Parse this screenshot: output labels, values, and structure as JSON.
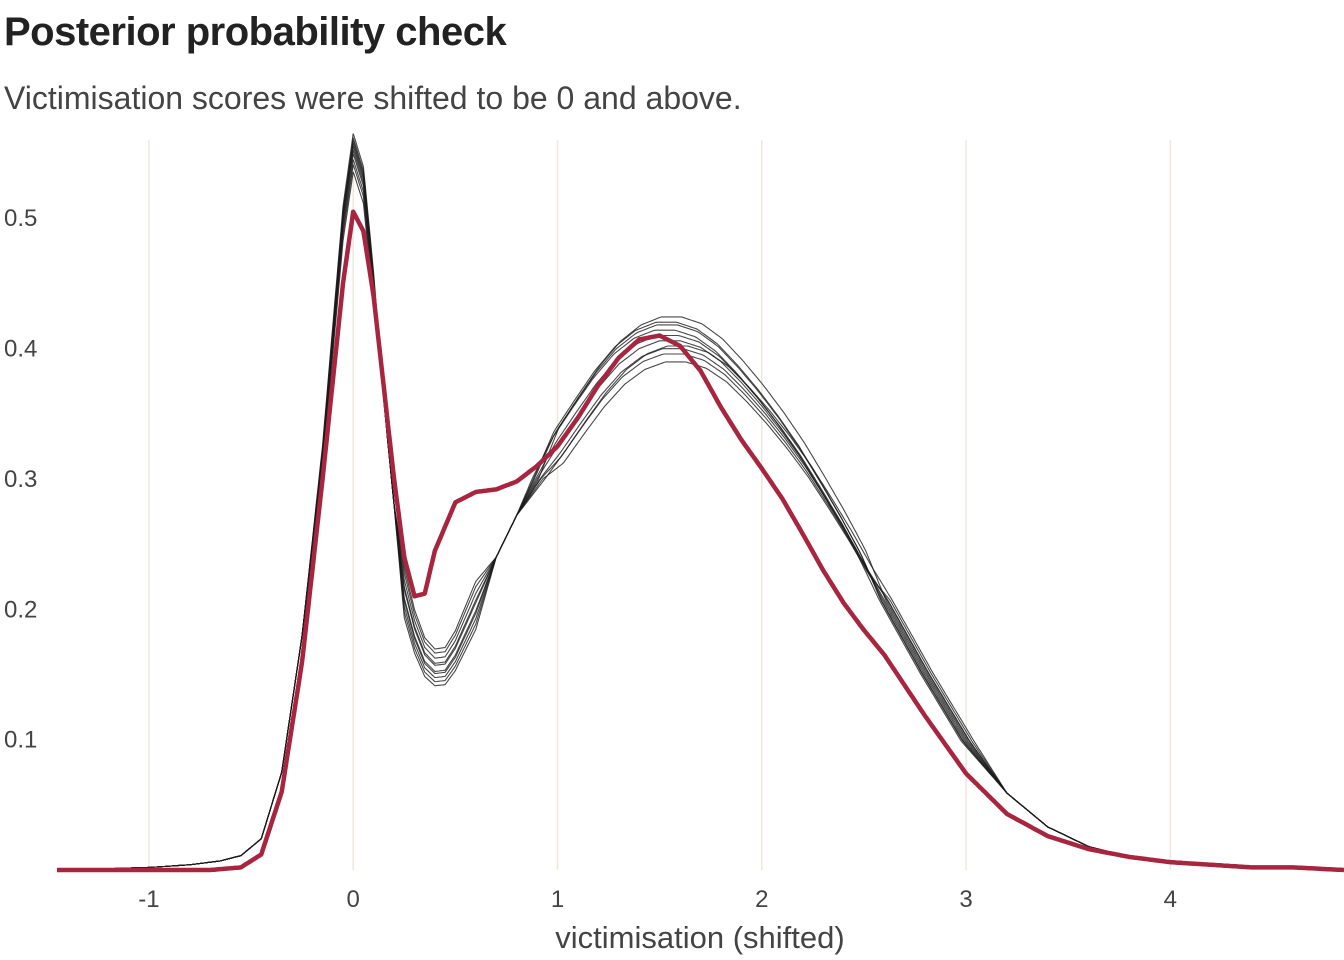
{
  "title": "Posterior probability check",
  "subtitle": "Victimisation scores were shifted to be 0 and above.",
  "chart_data": {
    "type": "line",
    "xlabel": "victimisation (shifted)",
    "ylabel": "",
    "xlim": [
      -1.45,
      4.85
    ],
    "ylim": [
      0,
      0.56
    ],
    "xticks": [
      "-1",
      "0",
      "1",
      "2",
      "3",
      "4"
    ],
    "yticks": [
      "0.1",
      "0.2",
      "0.3",
      "0.4",
      "0.5"
    ],
    "grid": "vertical",
    "colors": {
      "observed": "#A8253F",
      "replicated": "#1a1a1a",
      "grid": "#EFE8DF"
    },
    "observed": {
      "x": [
        -1.45,
        -1.0,
        -0.7,
        -0.55,
        -0.45,
        -0.35,
        -0.25,
        -0.15,
        -0.05,
        0.0,
        0.05,
        0.1,
        0.15,
        0.2,
        0.25,
        0.3,
        0.35,
        0.4,
        0.5,
        0.6,
        0.7,
        0.8,
        0.9,
        1.0,
        1.1,
        1.2,
        1.3,
        1.4,
        1.5,
        1.6,
        1.7,
        1.8,
        1.9,
        2.0,
        2.1,
        2.2,
        2.3,
        2.4,
        2.5,
        2.6,
        2.8,
        3.0,
        3.2,
        3.4,
        3.6,
        3.8,
        4.0,
        4.2,
        4.4,
        4.6,
        4.85
      ],
      "y": [
        0.0,
        0.0,
        0.0,
        0.002,
        0.012,
        0.06,
        0.16,
        0.3,
        0.45,
        0.505,
        0.49,
        0.44,
        0.37,
        0.3,
        0.24,
        0.21,
        0.212,
        0.245,
        0.282,
        0.29,
        0.292,
        0.298,
        0.31,
        0.325,
        0.347,
        0.372,
        0.393,
        0.407,
        0.41,
        0.402,
        0.383,
        0.355,
        0.33,
        0.308,
        0.285,
        0.258,
        0.23,
        0.205,
        0.184,
        0.165,
        0.118,
        0.074,
        0.043,
        0.026,
        0.016,
        0.01,
        0.006,
        0.004,
        0.002,
        0.002,
        0.0
      ]
    },
    "replicated_x": [
      -1.45,
      -1.2,
      -1.0,
      -0.8,
      -0.65,
      -0.55,
      -0.45,
      -0.35,
      -0.25,
      -0.15,
      -0.05,
      0.0,
      0.05,
      0.1,
      0.15,
      0.2,
      0.25,
      0.3,
      0.35,
      0.4,
      0.45,
      0.5,
      0.6,
      0.7,
      0.8,
      0.9,
      1.0,
      1.1,
      1.2,
      1.3,
      1.4,
      1.5,
      1.6,
      1.7,
      1.8,
      1.9,
      2.0,
      2.1,
      2.2,
      2.3,
      2.4,
      2.5,
      2.6,
      2.8,
      3.0,
      3.2,
      3.4,
      3.6,
      3.8,
      4.0,
      4.2,
      4.4,
      4.6,
      4.85
    ],
    "replicated_y": [
      0.0,
      0.001,
      0.002,
      0.004,
      0.007,
      0.011,
      0.024,
      0.075,
      0.18,
      0.32,
      0.5,
      0.555,
      0.53,
      0.45,
      0.36,
      0.28,
      0.215,
      0.185,
      0.165,
      0.157,
      0.158,
      0.17,
      0.205,
      0.24,
      0.272,
      0.3,
      0.325,
      0.348,
      0.37,
      0.388,
      0.4,
      0.406,
      0.406,
      0.401,
      0.39,
      0.374,
      0.356,
      0.336,
      0.314,
      0.289,
      0.263,
      0.235,
      0.207,
      0.151,
      0.099,
      0.059,
      0.033,
      0.018,
      0.01,
      0.006,
      0.003,
      0.002,
      0.001,
      0.0
    ],
    "replicated_draws": [
      {
        "peak": 1.0,
        "dip": 1.0,
        "bump": 1.0,
        "shift": 0.0
      },
      {
        "peak": 1.012,
        "dip": 0.94,
        "bump": 0.975,
        "shift": 0.05
      },
      {
        "peak": 0.975,
        "dip": 1.06,
        "bump": 1.03,
        "shift": -0.04
      },
      {
        "peak": 1.018,
        "dip": 0.9,
        "bump": 1.045,
        "shift": 0.02
      },
      {
        "peak": 0.99,
        "dip": 1.035,
        "bump": 0.96,
        "shift": 0.08
      },
      {
        "peak": 0.965,
        "dip": 0.97,
        "bump": 1.02,
        "shift": -0.07
      },
      {
        "peak": 1.008,
        "dip": 1.08,
        "bump": 0.99,
        "shift": 0.11
      },
      {
        "peak": 0.982,
        "dip": 0.92,
        "bump": 1.01,
        "shift": -0.02
      },
      {
        "peak": 0.995,
        "dip": 1.01,
        "bump": 0.985,
        "shift": 0.04
      },
      {
        "peak": 1.004,
        "dip": 0.96,
        "bump": 1.035,
        "shift": -0.05
      }
    ]
  }
}
